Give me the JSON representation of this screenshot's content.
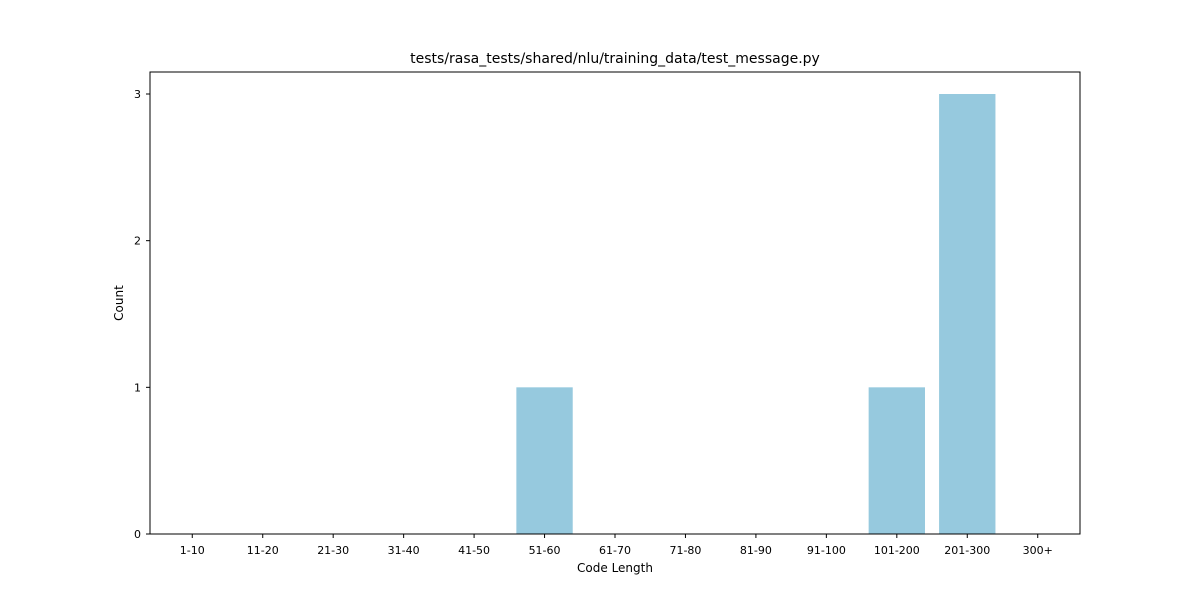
{
  "chart_data": {
    "type": "bar",
    "title": "tests/rasa_tests/shared/nlu/training_data/test_message.py",
    "xlabel": "Code Length",
    "ylabel": "Count",
    "categories": [
      "1-10",
      "11-20",
      "21-30",
      "31-40",
      "41-50",
      "51-60",
      "61-70",
      "71-80",
      "81-90",
      "91-100",
      "101-200",
      "201-300",
      "300+"
    ],
    "values": [
      0,
      0,
      0,
      0,
      0,
      1,
      0,
      0,
      0,
      0,
      1,
      3,
      0
    ],
    "ylim": [
      0,
      3.15
    ],
    "yticks": [
      0,
      1,
      2,
      3
    ],
    "grid": false,
    "bar_color": "#96c9de"
  }
}
